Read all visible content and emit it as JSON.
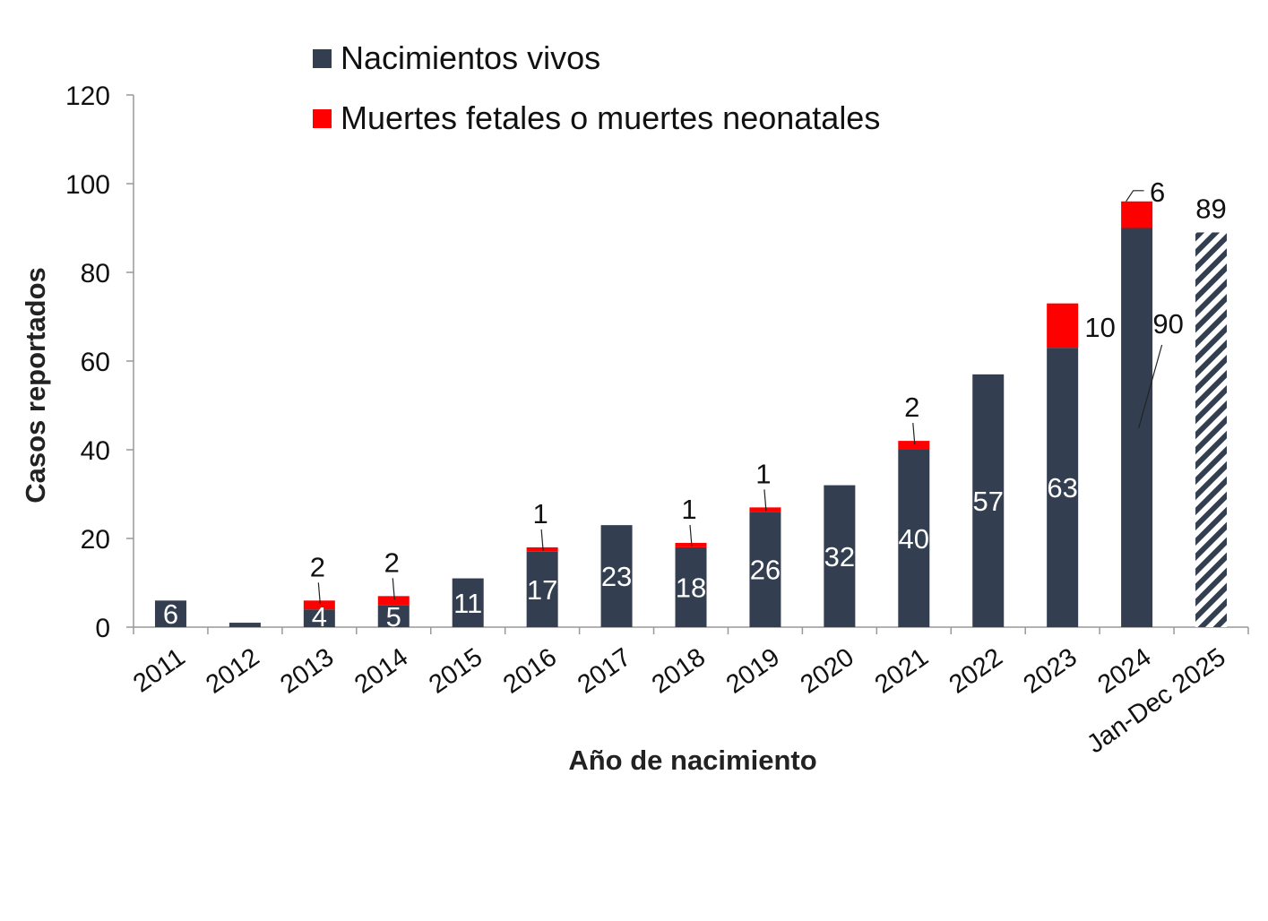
{
  "chart_data": {
    "type": "bar",
    "stacked": true,
    "title": "",
    "xlabel": "Año de nacimiento",
    "ylabel": "Casos reportados",
    "ylim": [
      0,
      120
    ],
    "yticks": [
      0,
      20,
      40,
      60,
      80,
      100,
      120
    ],
    "grid": false,
    "legend_placement": "top",
    "categories": [
      "2011",
      "2012",
      "2013",
      "2014",
      "2015",
      "2016",
      "2017",
      "2018",
      "2019",
      "2020",
      "2021",
      "2022",
      "2023",
      "2024",
      "Jan-Dec 2025"
    ],
    "series": [
      {
        "name": "Nacimientos vivos",
        "color": "#333f50",
        "values": [
          6,
          1,
          4,
          5,
          11,
          17,
          23,
          18,
          26,
          32,
          40,
          57,
          63,
          90,
          89
        ]
      },
      {
        "name": "Muertes fetales o muertes neonatales",
        "color": "#ff0000",
        "values": [
          0,
          0,
          2,
          2,
          0,
          1,
          0,
          1,
          1,
          0,
          2,
          0,
          10,
          6,
          0
        ]
      }
    ],
    "notes": {
      "hatched_category": "Jan-Dec 2025"
    }
  }
}
